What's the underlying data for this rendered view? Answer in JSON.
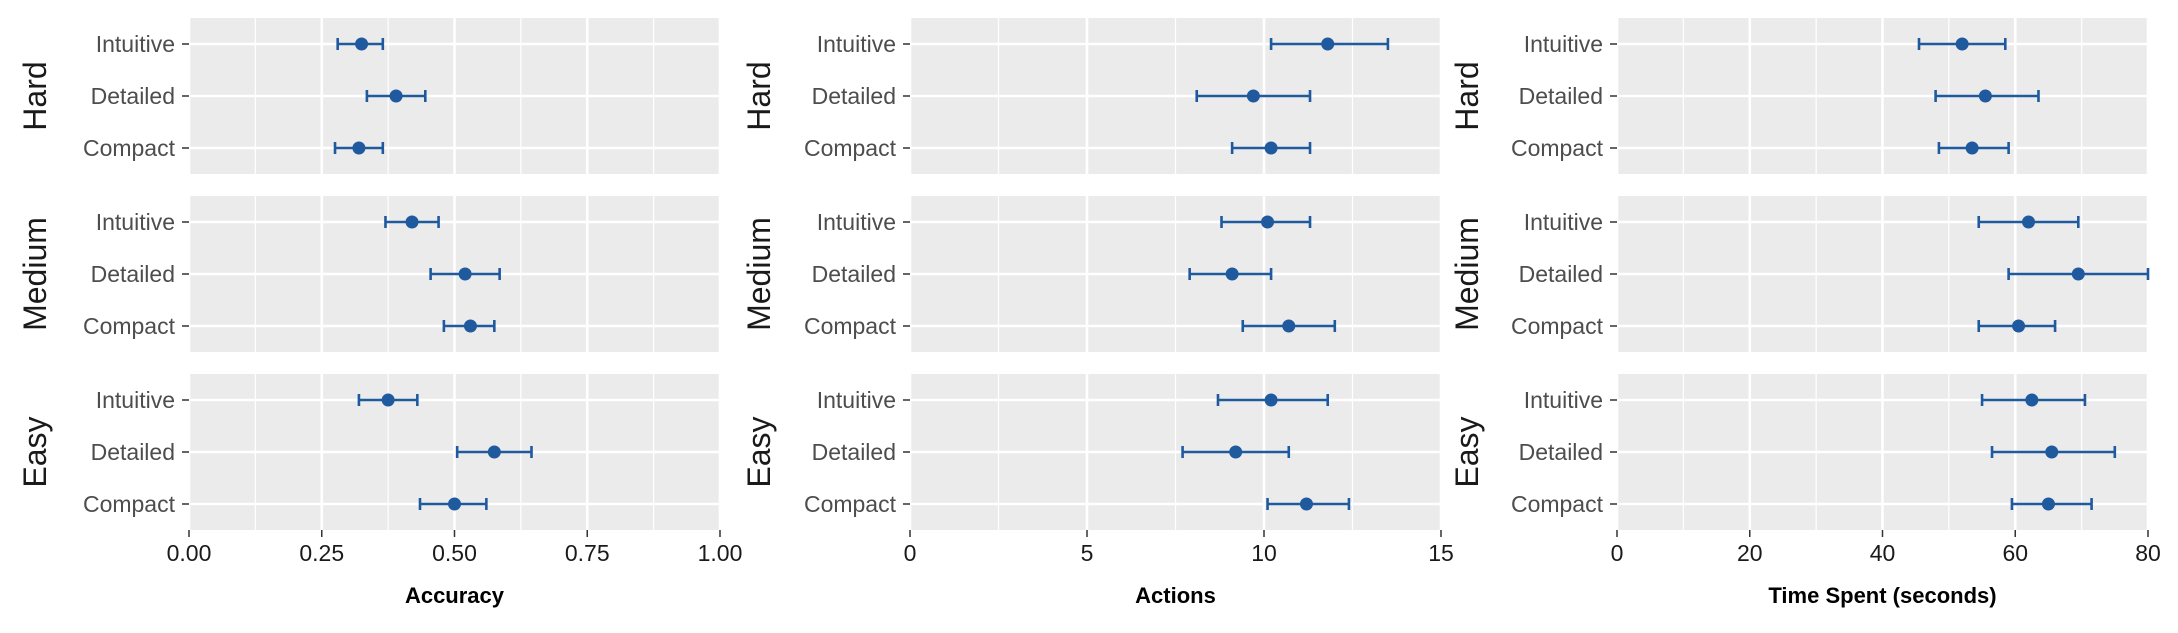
{
  "chart_data": [
    {
      "type": "errorbar",
      "xlabel": "Accuracy",
      "xlim": [
        0,
        1
      ],
      "xticks": [
        "0.00",
        "0.25",
        "0.50",
        "0.75",
        "1.00"
      ],
      "xtick_values": [
        0,
        0.25,
        0.5,
        0.75,
        1.0
      ],
      "facets": [
        "Hard",
        "Medium",
        "Easy"
      ],
      "categories": [
        "Intuitive",
        "Detailed",
        "Compact"
      ],
      "series": [
        {
          "facet": "Hard",
          "points": [
            {
              "category": "Intuitive",
              "mean": 0.325,
              "low": 0.28,
              "high": 0.365
            },
            {
              "category": "Detailed",
              "mean": 0.39,
              "low": 0.335,
              "high": 0.445
            },
            {
              "category": "Compact",
              "mean": 0.32,
              "low": 0.275,
              "high": 0.365
            }
          ]
        },
        {
          "facet": "Medium",
          "points": [
            {
              "category": "Intuitive",
              "mean": 0.42,
              "low": 0.37,
              "high": 0.47
            },
            {
              "category": "Detailed",
              "mean": 0.52,
              "low": 0.455,
              "high": 0.585
            },
            {
              "category": "Compact",
              "mean": 0.53,
              "low": 0.48,
              "high": 0.575
            }
          ]
        },
        {
          "facet": "Easy",
          "points": [
            {
              "category": "Intuitive",
              "mean": 0.375,
              "low": 0.32,
              "high": 0.43
            },
            {
              "category": "Detailed",
              "mean": 0.575,
              "low": 0.505,
              "high": 0.645
            },
            {
              "category": "Compact",
              "mean": 0.5,
              "low": 0.435,
              "high": 0.56
            }
          ]
        }
      ]
    },
    {
      "type": "errorbar",
      "xlabel": "Actions",
      "xlim": [
        0,
        15
      ],
      "xticks": [
        "0",
        "5",
        "10",
        "15"
      ],
      "xtick_values": [
        0,
        5,
        10,
        15
      ],
      "facets": [
        "Hard",
        "Medium",
        "Easy"
      ],
      "categories": [
        "Intuitive",
        "Detailed",
        "Compact"
      ],
      "series": [
        {
          "facet": "Hard",
          "points": [
            {
              "category": "Intuitive",
              "mean": 11.8,
              "low": 10.2,
              "high": 13.5
            },
            {
              "category": "Detailed",
              "mean": 9.7,
              "low": 8.1,
              "high": 11.3
            },
            {
              "category": "Compact",
              "mean": 10.2,
              "low": 9.1,
              "high": 11.3
            }
          ]
        },
        {
          "facet": "Medium",
          "points": [
            {
              "category": "Intuitive",
              "mean": 10.1,
              "low": 8.8,
              "high": 11.3
            },
            {
              "category": "Detailed",
              "mean": 9.1,
              "low": 7.9,
              "high": 10.2
            },
            {
              "category": "Compact",
              "mean": 10.7,
              "low": 9.4,
              "high": 12.0
            }
          ]
        },
        {
          "facet": "Easy",
          "points": [
            {
              "category": "Intuitive",
              "mean": 10.2,
              "low": 8.7,
              "high": 11.8
            },
            {
              "category": "Detailed",
              "mean": 9.2,
              "low": 7.7,
              "high": 10.7
            },
            {
              "category": "Compact",
              "mean": 11.2,
              "low": 10.1,
              "high": 12.4
            }
          ]
        }
      ]
    },
    {
      "type": "errorbar",
      "xlabel": "Time Spent (seconds)",
      "xlim": [
        0,
        80
      ],
      "xticks": [
        "0",
        "20",
        "40",
        "60",
        "80"
      ],
      "xtick_values": [
        0,
        20,
        40,
        60,
        80
      ],
      "facets": [
        "Hard",
        "Medium",
        "Easy"
      ],
      "categories": [
        "Intuitive",
        "Detailed",
        "Compact"
      ],
      "series": [
        {
          "facet": "Hard",
          "points": [
            {
              "category": "Intuitive",
              "mean": 52,
              "low": 45.5,
              "high": 58.5
            },
            {
              "category": "Detailed",
              "mean": 55.5,
              "low": 48,
              "high": 63.5
            },
            {
              "category": "Compact",
              "mean": 53.5,
              "low": 48.5,
              "high": 59
            }
          ]
        },
        {
          "facet": "Medium",
          "points": [
            {
              "category": "Intuitive",
              "mean": 62,
              "low": 54.5,
              "high": 69.5
            },
            {
              "category": "Detailed",
              "mean": 69.5,
              "low": 59,
              "high": 80
            },
            {
              "category": "Compact",
              "mean": 60.5,
              "low": 54.5,
              "high": 66
            }
          ]
        },
        {
          "facet": "Easy",
          "points": [
            {
              "category": "Intuitive",
              "mean": 62.5,
              "low": 55,
              "high": 70.5
            },
            {
              "category": "Detailed",
              "mean": 65.5,
              "low": 56.5,
              "high": 75
            },
            {
              "category": "Compact",
              "mean": 65,
              "low": 59.5,
              "high": 71.5
            }
          ]
        }
      ]
    }
  ],
  "colors": {
    "panel_background": "#ebebeb",
    "gridline": "#ffffff",
    "point": "#1f5a9e",
    "errorbar": "#1f5a9e",
    "tick": "#333333"
  }
}
